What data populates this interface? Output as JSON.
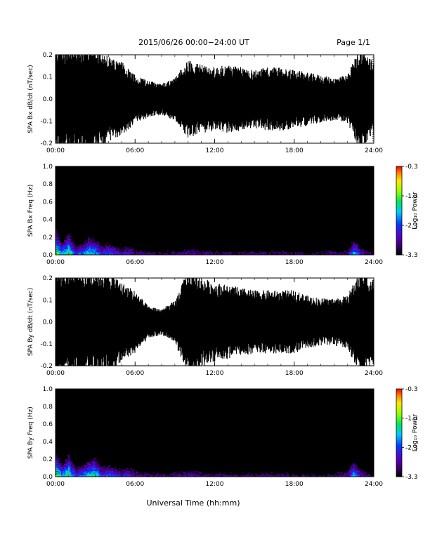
{
  "header": {
    "title": "2015/06/26  00:00−24:00 UT",
    "page": "Page 1/1"
  },
  "footer": {
    "xlabel": "Universal Time (hh:mm)"
  },
  "colorbar": {
    "label": "Log₁₀ Power",
    "ticks": [
      "-0.3",
      "-1.3",
      "-2.3",
      "-3.3"
    ],
    "range": [
      -3.3,
      -0.3
    ]
  },
  "chart_data": [
    {
      "type": "line",
      "ylabel": "SPA Bx dB/dt (nT/sec)",
      "xlim": [
        0,
        24
      ],
      "ylim": [
        -0.2,
        0.2
      ],
      "xticks": [
        "00:00",
        "06:00",
        "12:00",
        "18:00",
        "24:00"
      ],
      "yticks": [
        "-0.2",
        "-0.1",
        "0.0",
        "0.1",
        "0.2"
      ],
      "envelope_hours": [
        0,
        1,
        2,
        3,
        4,
        5,
        6,
        7,
        8,
        9,
        10,
        11,
        12,
        13,
        14,
        15,
        16,
        17,
        18,
        19,
        20,
        21,
        22,
        23,
        24
      ],
      "envelope_amplitude": [
        0.2,
        0.2,
        0.2,
        0.2,
        0.16,
        0.14,
        0.09,
        0.07,
        0.06,
        0.08,
        0.15,
        0.13,
        0.12,
        0.13,
        0.12,
        0.11,
        0.12,
        0.12,
        0.11,
        0.1,
        0.09,
        0.08,
        0.09,
        0.2,
        0.14
      ]
    },
    {
      "type": "heatmap",
      "ylabel": "SPA Bx Freq (Hz)",
      "xlim": [
        0,
        24
      ],
      "ylim": [
        0,
        1
      ],
      "xticks": [
        "00:00",
        "06:00",
        "12:00",
        "18:00",
        "24:00"
      ],
      "yticks": [
        "0.0",
        "0.2",
        "0.4",
        "0.6",
        "0.8",
        "1.0"
      ],
      "zrange": [
        -3.3,
        -0.3
      ],
      "power_hours": [
        0,
        0.5,
        1,
        1.5,
        2,
        2.5,
        3,
        3.5,
        4,
        4.5,
        5,
        5.5,
        6,
        7,
        8,
        9,
        10,
        11,
        12,
        13,
        14,
        15,
        16,
        17,
        18,
        19,
        20,
        21,
        22,
        22.5,
        23,
        23.5,
        24
      ],
      "power_low_freq": [
        -1.0,
        -1.8,
        -1.2,
        -2.2,
        -2.0,
        -1.5,
        -1.6,
        -2.2,
        -2.0,
        -2.2,
        -2.5,
        -2.3,
        -2.7,
        -2.8,
        -2.9,
        -2.8,
        -2.6,
        -2.7,
        -2.8,
        -2.8,
        -2.9,
        -2.8,
        -2.9,
        -2.8,
        -2.9,
        -2.9,
        -2.9,
        -2.8,
        -2.7,
        -1.6,
        -2.4,
        -2.8,
        -3.0
      ]
    },
    {
      "type": "line",
      "ylabel": "SPA By dB/dt (nT/sec)",
      "xlim": [
        0,
        24
      ],
      "ylim": [
        -0.2,
        0.2
      ],
      "xticks": [
        "00:00",
        "06:00",
        "12:00",
        "18:00",
        "24:00"
      ],
      "yticks": [
        "-0.2",
        "-0.1",
        "0.0",
        "0.1",
        "0.2"
      ],
      "envelope_hours": [
        0,
        1,
        2,
        3,
        4,
        5,
        6,
        7,
        8,
        9,
        10,
        11,
        12,
        13,
        14,
        15,
        16,
        17,
        18,
        19,
        20,
        21,
        22,
        23,
        24
      ],
      "envelope_amplitude": [
        0.2,
        0.2,
        0.2,
        0.2,
        0.2,
        0.15,
        0.12,
        0.06,
        0.05,
        0.08,
        0.2,
        0.17,
        0.15,
        0.14,
        0.13,
        0.12,
        0.12,
        0.12,
        0.12,
        0.1,
        0.09,
        0.09,
        0.1,
        0.2,
        0.16
      ]
    },
    {
      "type": "heatmap",
      "ylabel": "SPA By Freq (Hz)",
      "xlim": [
        0,
        24
      ],
      "ylim": [
        0,
        1
      ],
      "xticks": [
        "00:00",
        "06:00",
        "12:00",
        "18:00",
        "24:00"
      ],
      "yticks": [
        "0.0",
        "0.2",
        "0.4",
        "0.6",
        "0.8",
        "1.0"
      ],
      "zrange": [
        -3.3,
        -0.3
      ],
      "power_hours": [
        0,
        0.5,
        1,
        1.5,
        2,
        2.5,
        3,
        3.5,
        4,
        4.5,
        5,
        5.5,
        6,
        7,
        8,
        9,
        10,
        11,
        12,
        13,
        14,
        15,
        16,
        17,
        18,
        19,
        20,
        21,
        22,
        22.5,
        23,
        23.5,
        24
      ],
      "power_low_freq": [
        -1.0,
        -1.8,
        -1.2,
        -2.2,
        -2.0,
        -1.5,
        -1.4,
        -2.2,
        -2.0,
        -2.2,
        -2.4,
        -2.2,
        -2.6,
        -2.8,
        -2.9,
        -2.8,
        -2.6,
        -2.7,
        -2.8,
        -2.8,
        -2.9,
        -2.8,
        -2.8,
        -2.8,
        -2.9,
        -2.9,
        -2.9,
        -2.8,
        -2.6,
        -1.6,
        -2.4,
        -2.8,
        -3.0
      ]
    }
  ]
}
